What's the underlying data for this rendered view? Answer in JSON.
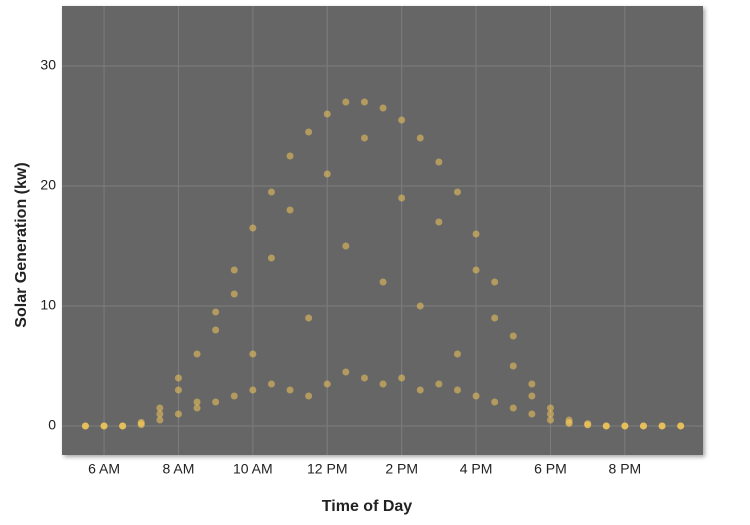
{
  "chart_data": {
    "type": "scatter",
    "x_label": "Time of Day",
    "y_label": "Solar Generation (kw)",
    "color": "#f2c65a",
    "xlim": [
      4.87,
      22.1
    ],
    "ylim": [
      -2.42,
      35
    ],
    "xticks": [
      {
        "value": 6,
        "label": "6 AM"
      },
      {
        "value": 8,
        "label": "8 AM"
      },
      {
        "value": 10,
        "label": "10 AM"
      },
      {
        "value": 12,
        "label": "12 PM"
      },
      {
        "value": 14,
        "label": "2 PM"
      },
      {
        "value": 16,
        "label": "4 PM"
      },
      {
        "value": 18,
        "label": "6 PM"
      },
      {
        "value": 20,
        "label": "8 PM"
      }
    ],
    "yticks": [
      0,
      10,
      20,
      30
    ],
    "grid": true,
    "x": [
      5.5,
      6,
      6.5,
      7,
      7.5,
      8,
      8.5,
      9,
      9.5,
      10,
      10.5,
      11,
      11.5,
      12,
      12.5,
      13,
      13.5,
      14,
      14.5,
      15,
      15.5,
      16,
      16.5,
      17,
      17.5,
      18,
      18.5,
      19,
      19.5,
      20,
      20.5,
      21,
      21.5,
      5.5,
      6,
      6.5,
      7,
      7.5,
      8,
      8.5,
      9,
      9.5,
      10,
      10.5,
      11,
      11.5,
      12,
      12.5,
      13,
      13.5,
      14,
      14.5,
      15,
      15.5,
      16,
      16.5,
      17,
      17.5,
      18,
      18.5,
      19,
      19.5,
      20,
      20.5,
      21,
      21.5,
      5.5,
      6,
      6.5,
      7,
      7.5,
      8,
      8.5,
      9,
      9.5,
      10,
      10.5,
      11,
      11.5,
      12,
      12.5,
      13,
      13.5,
      14,
      14.5,
      15,
      15.5,
      16,
      16.5,
      17,
      17.5,
      18,
      18.5,
      19,
      19.5,
      20,
      20.5,
      21,
      21.5
    ],
    "values": [
      0,
      0,
      0,
      0.2,
      1,
      3,
      6,
      9.5,
      13,
      16.5,
      19.5,
      22.5,
      24.5,
      26,
      27,
      27,
      26.5,
      25.5,
      24,
      22,
      19.5,
      16,
      12,
      7.5,
      3.5,
      1.5,
      0.5,
      0.2,
      0,
      0,
      0,
      0,
      0,
      0,
      0,
      0,
      0.1,
      0.5,
      1,
      1.5,
      2,
      2.5,
      3,
      3.5,
      3,
      2.5,
      3.5,
      4.5,
      4,
      3.5,
      4,
      3,
      3.5,
      3,
      2.5,
      2,
      1.5,
      1,
      0.5,
      0.2,
      0.1,
      0,
      0,
      0,
      0,
      0,
      0,
      0,
      0,
      0.3,
      1.5,
      4,
      2,
      8,
      11,
      6,
      14,
      18,
      9,
      21,
      15,
      24,
      12,
      19,
      10,
      17,
      6,
      13,
      9,
      5,
      2.5,
      1,
      0.3,
      0.1,
      0,
      0,
      0,
      0,
      0
    ]
  }
}
